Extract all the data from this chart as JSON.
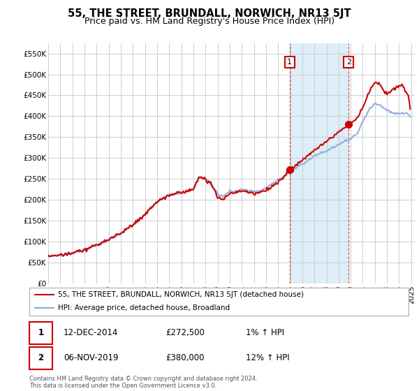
{
  "title": "55, THE STREET, BRUNDALL, NORWICH, NR13 5JT",
  "subtitle": "Price paid vs. HM Land Registry's House Price Index (HPI)",
  "title_fontsize": 10.5,
  "subtitle_fontsize": 9,
  "background_color": "#ffffff",
  "plot_bg_color": "#ffffff",
  "grid_color": "#cccccc",
  "shaded_color": "#ddeef8",
  "ylabel_ticks": [
    "£0",
    "£50K",
    "£100K",
    "£150K",
    "£200K",
    "£250K",
    "£300K",
    "£350K",
    "£400K",
    "£450K",
    "£500K",
    "£550K"
  ],
  "ytick_values": [
    0,
    50000,
    100000,
    150000,
    200000,
    250000,
    300000,
    350000,
    400000,
    450000,
    500000,
    550000
  ],
  "ylim": [
    0,
    575000
  ],
  "xlim_start": 1995.0,
  "xlim_end": 2025.3,
  "xtick_years": [
    1995,
    1996,
    1997,
    1998,
    1999,
    2000,
    2001,
    2002,
    2003,
    2004,
    2005,
    2006,
    2007,
    2008,
    2009,
    2010,
    2011,
    2012,
    2013,
    2014,
    2015,
    2016,
    2017,
    2018,
    2019,
    2020,
    2021,
    2022,
    2023,
    2024,
    2025
  ],
  "legend_entries": [
    {
      "label": "55, THE STREET, BRUNDALL, NORWICH, NR13 5JT (detached house)",
      "color": "#cc0000",
      "lw": 1.5
    },
    {
      "label": "HPI: Average price, detached house, Broadland",
      "color": "#88aadd",
      "lw": 1.5
    }
  ],
  "sale1_x": 2014.958,
  "sale1_y": 272500,
  "sale2_x": 2019.833,
  "sale2_y": 380000,
  "table_rows": [
    {
      "num": "1",
      "date": "12-DEC-2014",
      "price": "£272,500",
      "change": "1% ↑ HPI"
    },
    {
      "num": "2",
      "date": "06-NOV-2019",
      "price": "£380,000",
      "change": "12% ↑ HPI"
    }
  ],
  "footnote": "Contains HM Land Registry data © Crown copyright and database right 2024.\nThis data is licensed under the Open Government Licence v3.0."
}
